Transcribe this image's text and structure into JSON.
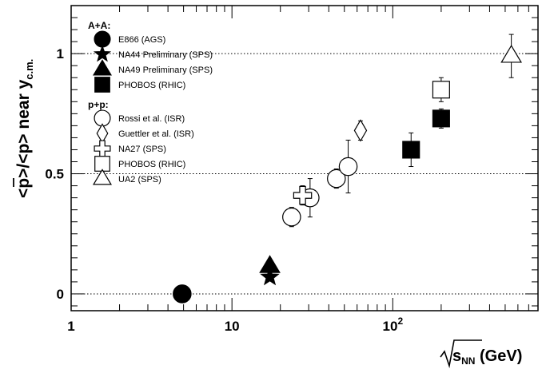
{
  "chart_data": {
    "type": "scatter",
    "title": "",
    "xscale": "log",
    "xlim": [
      1,
      800
    ],
    "ylim": [
      -0.07,
      1.2
    ],
    "x_ticks": [
      {
        "value": 1,
        "label": "1"
      },
      {
        "value": 10,
        "label": "10"
      },
      {
        "value": 100,
        "label": "10",
        "exp": "2"
      }
    ],
    "y_ticks": [
      {
        "value": 0,
        "label": "0"
      },
      {
        "value": 0.5,
        "label": "0.5"
      },
      {
        "value": 1,
        "label": "1"
      }
    ],
    "reference_lines": [
      0,
      0.5,
      1
    ],
    "xlabel": {
      "pre": "s",
      "sub": "NN",
      "post": " (GeV)"
    },
    "ylabel": {
      "pre": "<",
      "bar": "p",
      "mid": ">/<p> near y",
      "sub": "c.m."
    },
    "legend": {
      "placement": "top-left",
      "groups": [
        {
          "header": "A+A:",
          "entries": [
            {
              "label": "E866 (AGS)",
              "marker": "circle-filled"
            },
            {
              "label": "NA44 Preliminary (SPS)",
              "marker": "star-filled"
            },
            {
              "label": "NA49 Preliminary (SPS)",
              "marker": "triangle-filled"
            },
            {
              "label": "PHOBOS (RHIC)",
              "marker": "square-filled"
            }
          ]
        },
        {
          "header": "p+p:",
          "entries": [
            {
              "label": "Rossi et al. (ISR)",
              "marker": "circle-open"
            },
            {
              "label": "Guettler et al. (ISR)",
              "marker": "diamond-open"
            },
            {
              "label": "NA27 (SPS)",
              "marker": "cross-open"
            },
            {
              "label": "PHOBOS (RHIC)",
              "marker": "square-open"
            },
            {
              "label": "UA2 (SPS)",
              "marker": "triangle-open"
            }
          ]
        }
      ]
    },
    "series": [
      {
        "legend_label": "E866 (AGS)",
        "marker": "circle-filled",
        "points": [
          {
            "x": 4.9,
            "y": 0.0
          }
        ]
      },
      {
        "legend_label": "NA44 Preliminary (SPS)",
        "marker": "star-filled",
        "points": [
          {
            "x": 17.2,
            "y": 0.07
          }
        ]
      },
      {
        "legend_label": "NA49 Preliminary (SPS)",
        "marker": "triangle-filled",
        "points": [
          {
            "x": 17.2,
            "y": 0.115
          }
        ]
      },
      {
        "legend_label": "PHOBOS (RHIC)",
        "marker": "square-filled",
        "points": [
          {
            "x": 130,
            "y": 0.6,
            "err": 0.07
          },
          {
            "x": 200,
            "y": 0.73,
            "err": 0.04
          }
        ]
      },
      {
        "legend_label": "Rossi et al. (ISR)",
        "marker": "circle-open",
        "points": [
          {
            "x": 23.5,
            "y": 0.32,
            "err": 0.04
          },
          {
            "x": 30.6,
            "y": 0.4,
            "err": 0.08
          },
          {
            "x": 44.6,
            "y": 0.48,
            "err": 0.04
          },
          {
            "x": 52.8,
            "y": 0.53,
            "err": 0.11
          }
        ]
      },
      {
        "legend_label": "Guettler et al. (ISR)",
        "marker": "diamond-open",
        "points": [
          {
            "x": 63,
            "y": 0.68,
            "err": 0.04
          }
        ]
      },
      {
        "legend_label": "NA27 (SPS)",
        "marker": "cross-open",
        "points": [
          {
            "x": 27.5,
            "y": 0.41,
            "err": 0.04
          }
        ]
      },
      {
        "legend_label": "PHOBOS (RHIC)",
        "marker": "square-open",
        "points": [
          {
            "x": 200,
            "y": 0.85,
            "err": 0.05
          }
        ]
      },
      {
        "legend_label": "UA2 (SPS)",
        "marker": "triangle-open",
        "points": [
          {
            "x": 546,
            "y": 0.99,
            "err": 0.09
          }
        ]
      }
    ]
  }
}
